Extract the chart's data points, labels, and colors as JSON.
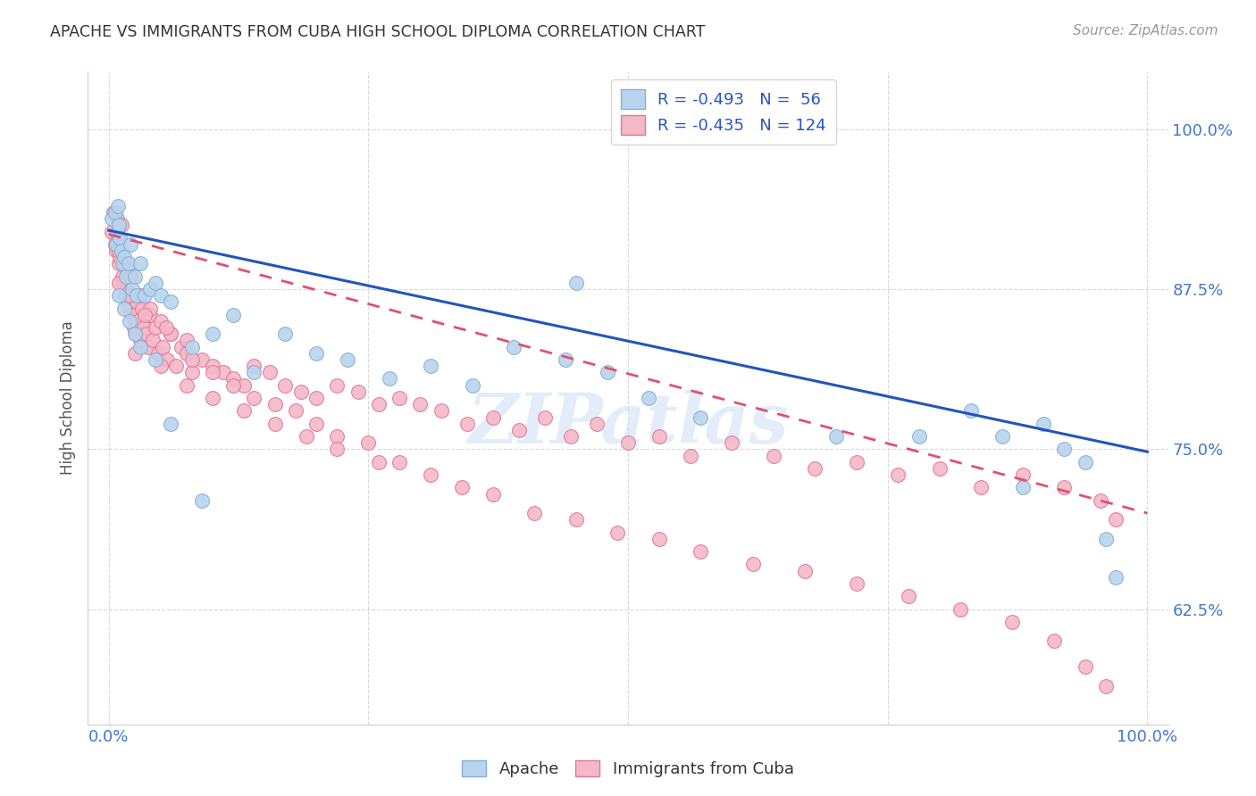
{
  "title": "APACHE VS IMMIGRANTS FROM CUBA HIGH SCHOOL DIPLOMA CORRELATION CHART",
  "source": "Source: ZipAtlas.com",
  "ylabel": "High School Diploma",
  "ytick_labels": [
    "62.5%",
    "75.0%",
    "87.5%",
    "100.0%"
  ],
  "ytick_values": [
    0.625,
    0.75,
    0.875,
    1.0
  ],
  "xlim": [
    -0.02,
    1.02
  ],
  "ylim": [
    0.535,
    1.045
  ],
  "watermark": "ZIPatlas",
  "apache_color": "#b8d4ed",
  "apache_edge": "#85afd4",
  "cuba_color": "#f4b8c8",
  "cuba_edge": "#e07898",
  "apache_line_color": "#2255bb",
  "cuba_line_color": "#e05070",
  "background_color": "#ffffff",
  "grid_color": "#d8d8d8",
  "title_color": "#333333",
  "tick_label_color": "#4477cc",
  "apache_line_start_y": 0.921,
  "apache_line_end_y": 0.748,
  "cuba_line_start_y": 0.918,
  "cuba_line_end_y": 0.7,
  "apache_x": [
    0.003,
    0.006,
    0.007,
    0.008,
    0.009,
    0.01,
    0.011,
    0.012,
    0.013,
    0.015,
    0.017,
    0.019,
    0.021,
    0.023,
    0.025,
    0.027,
    0.03,
    0.035,
    0.04,
    0.045,
    0.05,
    0.06,
    0.08,
    0.1,
    0.12,
    0.14,
    0.17,
    0.2,
    0.23,
    0.27,
    0.31,
    0.35,
    0.39,
    0.44,
    0.48,
    0.52,
    0.57,
    0.7,
    0.78,
    0.83,
    0.86,
    0.88,
    0.9,
    0.92,
    0.94,
    0.96,
    0.97,
    0.01,
    0.015,
    0.02,
    0.025,
    0.03,
    0.045,
    0.06,
    0.09,
    0.45
  ],
  "apache_y": [
    0.93,
    0.935,
    0.91,
    0.92,
    0.94,
    0.925,
    0.915,
    0.905,
    0.895,
    0.9,
    0.885,
    0.895,
    0.91,
    0.875,
    0.885,
    0.87,
    0.895,
    0.87,
    0.875,
    0.88,
    0.87,
    0.865,
    0.83,
    0.84,
    0.855,
    0.81,
    0.84,
    0.825,
    0.82,
    0.805,
    0.815,
    0.8,
    0.83,
    0.82,
    0.81,
    0.79,
    0.775,
    0.76,
    0.76,
    0.78,
    0.76,
    0.72,
    0.77,
    0.75,
    0.74,
    0.68,
    0.65,
    0.87,
    0.86,
    0.85,
    0.84,
    0.83,
    0.82,
    0.77,
    0.71,
    0.88
  ],
  "cuba_x": [
    0.003,
    0.005,
    0.006,
    0.007,
    0.008,
    0.009,
    0.01,
    0.011,
    0.012,
    0.013,
    0.014,
    0.015,
    0.016,
    0.017,
    0.018,
    0.019,
    0.02,
    0.021,
    0.022,
    0.023,
    0.024,
    0.025,
    0.026,
    0.027,
    0.028,
    0.03,
    0.032,
    0.034,
    0.036,
    0.038,
    0.04,
    0.042,
    0.045,
    0.048,
    0.052,
    0.056,
    0.06,
    0.065,
    0.07,
    0.075,
    0.08,
    0.09,
    0.1,
    0.11,
    0.12,
    0.13,
    0.14,
    0.155,
    0.17,
    0.185,
    0.2,
    0.22,
    0.24,
    0.26,
    0.28,
    0.3,
    0.32,
    0.345,
    0.37,
    0.395,
    0.42,
    0.445,
    0.47,
    0.5,
    0.53,
    0.56,
    0.6,
    0.64,
    0.68,
    0.72,
    0.76,
    0.8,
    0.84,
    0.88,
    0.92,
    0.955,
    0.97,
    0.01,
    0.02,
    0.03,
    0.04,
    0.05,
    0.06,
    0.08,
    0.1,
    0.12,
    0.14,
    0.16,
    0.18,
    0.2,
    0.22,
    0.25,
    0.28,
    0.31,
    0.34,
    0.37,
    0.41,
    0.45,
    0.49,
    0.53,
    0.57,
    0.62,
    0.67,
    0.72,
    0.77,
    0.82,
    0.87,
    0.91,
    0.94,
    0.96,
    0.01,
    0.02,
    0.035,
    0.055,
    0.075,
    0.025,
    0.05,
    0.075,
    0.1,
    0.13,
    0.16,
    0.19,
    0.22,
    0.26
  ],
  "cuba_y": [
    0.92,
    0.935,
    0.91,
    0.905,
    0.93,
    0.915,
    0.895,
    0.9,
    0.925,
    0.885,
    0.88,
    0.895,
    0.87,
    0.875,
    0.89,
    0.865,
    0.86,
    0.885,
    0.855,
    0.87,
    0.845,
    0.855,
    0.84,
    0.865,
    0.85,
    0.835,
    0.86,
    0.845,
    0.84,
    0.83,
    0.855,
    0.835,
    0.845,
    0.825,
    0.83,
    0.82,
    0.84,
    0.815,
    0.83,
    0.825,
    0.81,
    0.82,
    0.815,
    0.81,
    0.805,
    0.8,
    0.815,
    0.81,
    0.8,
    0.795,
    0.79,
    0.8,
    0.795,
    0.785,
    0.79,
    0.785,
    0.78,
    0.77,
    0.775,
    0.765,
    0.775,
    0.76,
    0.77,
    0.755,
    0.76,
    0.745,
    0.755,
    0.745,
    0.735,
    0.74,
    0.73,
    0.735,
    0.72,
    0.73,
    0.72,
    0.71,
    0.695,
    0.905,
    0.885,
    0.87,
    0.86,
    0.85,
    0.84,
    0.82,
    0.81,
    0.8,
    0.79,
    0.785,
    0.78,
    0.77,
    0.76,
    0.755,
    0.74,
    0.73,
    0.72,
    0.715,
    0.7,
    0.695,
    0.685,
    0.68,
    0.67,
    0.66,
    0.655,
    0.645,
    0.635,
    0.625,
    0.615,
    0.6,
    0.58,
    0.565,
    0.88,
    0.87,
    0.855,
    0.845,
    0.835,
    0.825,
    0.815,
    0.8,
    0.79,
    0.78,
    0.77,
    0.76,
    0.75,
    0.74
  ]
}
